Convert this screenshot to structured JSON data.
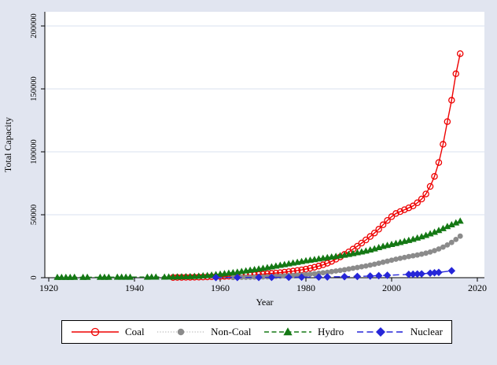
{
  "figure": {
    "background_color": "#e1e5f0",
    "plot_background_color": "#ffffff",
    "grid_color": "#d9e1ef",
    "axis_color": "#000000"
  },
  "chart_data": {
    "type": "line",
    "title": "",
    "xlabel": "Year",
    "ylabel": "Total Capacity",
    "xlim": [
      1919,
      2021.5
    ],
    "ylim": [
      0,
      211000
    ],
    "xticks": [
      1920,
      1940,
      1960,
      1980,
      2000,
      2020
    ],
    "yticks": [
      0,
      50000,
      100000,
      150000,
      200000
    ],
    "ytick_labels": [
      "0",
      "50000",
      "100000",
      "150000",
      "200000"
    ],
    "grid": "horizontal",
    "legend_position": "bottom",
    "series": [
      {
        "name": "Coal",
        "color": "#ee0000",
        "line_style": "solid",
        "dash": [],
        "marker": "open-circle",
        "points": [
          [
            1949,
            150
          ],
          [
            1950,
            200
          ],
          [
            1951,
            250
          ],
          [
            1952,
            300
          ],
          [
            1953,
            350
          ],
          [
            1954,
            400
          ],
          [
            1955,
            450
          ],
          [
            1956,
            550
          ],
          [
            1957,
            650
          ],
          [
            1958,
            750
          ],
          [
            1959,
            850
          ],
          [
            1960,
            950
          ],
          [
            1961,
            1050
          ],
          [
            1962,
            1150
          ],
          [
            1963,
            1300
          ],
          [
            1964,
            1450
          ],
          [
            1965,
            1600
          ],
          [
            1966,
            1800
          ],
          [
            1967,
            2000
          ],
          [
            1968,
            2250
          ],
          [
            1969,
            2500
          ],
          [
            1970,
            2800
          ],
          [
            1971,
            3100
          ],
          [
            1972,
            3400
          ],
          [
            1973,
            3700
          ],
          [
            1974,
            4000
          ],
          [
            1975,
            4400
          ],
          [
            1976,
            4800
          ],
          [
            1977,
            5200
          ],
          [
            1978,
            5700
          ],
          [
            1979,
            6200
          ],
          [
            1980,
            6800
          ],
          [
            1981,
            7500
          ],
          [
            1982,
            8300
          ],
          [
            1983,
            9200
          ],
          [
            1984,
            10200
          ],
          [
            1985,
            11500
          ],
          [
            1986,
            13000
          ],
          [
            1987,
            14700
          ],
          [
            1988,
            16500
          ],
          [
            1989,
            18500
          ],
          [
            1990,
            20500
          ],
          [
            1991,
            22700
          ],
          [
            1992,
            25000
          ],
          [
            1993,
            27500
          ],
          [
            1994,
            30000
          ],
          [
            1995,
            32700
          ],
          [
            1996,
            35500
          ],
          [
            1997,
            38500
          ],
          [
            1998,
            42000
          ],
          [
            1999,
            45500
          ],
          [
            2000,
            48500
          ],
          [
            2001,
            51000
          ],
          [
            2002,
            52500
          ],
          [
            2003,
            54000
          ],
          [
            2004,
            55500
          ],
          [
            2005,
            57000
          ],
          [
            2006,
            59500
          ],
          [
            2007,
            62500
          ],
          [
            2008,
            66500
          ],
          [
            2009,
            72500
          ],
          [
            2010,
            80500
          ],
          [
            2011,
            91500
          ],
          [
            2012,
            106000
          ],
          [
            2013,
            124000
          ],
          [
            2014,
            141000
          ],
          [
            2015,
            162000
          ],
          [
            2016,
            178000
          ]
        ]
      },
      {
        "name": "Non-Coal",
        "color": "#8b8b8b",
        "line_color": "#c4c4c4",
        "line_style": "dotted",
        "dash": [
          1.2,
          2.2
        ],
        "marker": "filled-circle",
        "points": [
          [
            1963,
            200
          ],
          [
            1964,
            250
          ],
          [
            1965,
            300
          ],
          [
            1966,
            350
          ],
          [
            1967,
            400
          ],
          [
            1968,
            450
          ],
          [
            1969,
            550
          ],
          [
            1970,
            650
          ],
          [
            1971,
            750
          ],
          [
            1972,
            900
          ],
          [
            1973,
            1050
          ],
          [
            1974,
            1200
          ],
          [
            1975,
            1400
          ],
          [
            1976,
            1600
          ],
          [
            1977,
            1800
          ],
          [
            1978,
            2000
          ],
          [
            1979,
            2200
          ],
          [
            1980,
            2500
          ],
          [
            1981,
            2800
          ],
          [
            1982,
            3100
          ],
          [
            1983,
            3500
          ],
          [
            1984,
            3900
          ],
          [
            1985,
            4300
          ],
          [
            1986,
            4800
          ],
          [
            1987,
            5300
          ],
          [
            1988,
            5800
          ],
          [
            1989,
            6300
          ],
          [
            1990,
            6900
          ],
          [
            1991,
            7500
          ],
          [
            1992,
            8100
          ],
          [
            1993,
            8700
          ],
          [
            1994,
            9300
          ],
          [
            1995,
            10000
          ],
          [
            1996,
            10700
          ],
          [
            1997,
            11500
          ],
          [
            1998,
            12300
          ],
          [
            1999,
            13100
          ],
          [
            2000,
            13900
          ],
          [
            2001,
            14700
          ],
          [
            2002,
            15400
          ],
          [
            2003,
            16100
          ],
          [
            2004,
            16800
          ],
          [
            2005,
            17400
          ],
          [
            2006,
            18000
          ],
          [
            2007,
            18700
          ],
          [
            2008,
            19500
          ],
          [
            2009,
            20400
          ],
          [
            2010,
            21500
          ],
          [
            2011,
            22800
          ],
          [
            2012,
            24300
          ],
          [
            2013,
            26000
          ],
          [
            2014,
            28000
          ],
          [
            2015,
            30400
          ],
          [
            2016,
            33000
          ]
        ]
      },
      {
        "name": "Hydro",
        "color": "#147814",
        "line_style": "dashed",
        "dash": [
          6,
          3.5
        ],
        "marker": "filled-triangle",
        "points": [
          [
            1922,
            300
          ],
          [
            1923,
            320
          ],
          [
            1924,
            340
          ],
          [
            1925,
            360
          ],
          [
            1926,
            380
          ],
          [
            1928,
            350
          ],
          [
            1929,
            370
          ],
          [
            1932,
            400
          ],
          [
            1933,
            420
          ],
          [
            1934,
            440
          ],
          [
            1936,
            450
          ],
          [
            1937,
            470
          ],
          [
            1938,
            490
          ],
          [
            1939,
            510
          ],
          [
            1943,
            520
          ],
          [
            1944,
            540
          ],
          [
            1945,
            560
          ],
          [
            1947,
            580
          ],
          [
            1948,
            620
          ],
          [
            1949,
            660
          ],
          [
            1950,
            700
          ],
          [
            1951,
            780
          ],
          [
            1952,
            870
          ],
          [
            1953,
            970
          ],
          [
            1954,
            1100
          ],
          [
            1955,
            1300
          ],
          [
            1956,
            1550
          ],
          [
            1957,
            1850
          ],
          [
            1958,
            2150
          ],
          [
            1959,
            2500
          ],
          [
            1960,
            2900
          ],
          [
            1961,
            3300
          ],
          [
            1962,
            3700
          ],
          [
            1963,
            4100
          ],
          [
            1964,
            4500
          ],
          [
            1965,
            5000
          ],
          [
            1966,
            5500
          ],
          [
            1967,
            6000
          ],
          [
            1968,
            6500
          ],
          [
            1969,
            7000
          ],
          [
            1970,
            7500
          ],
          [
            1971,
            8100
          ],
          [
            1972,
            8700
          ],
          [
            1973,
            9300
          ],
          [
            1974,
            9900
          ],
          [
            1975,
            10500
          ],
          [
            1976,
            11100
          ],
          [
            1977,
            11700
          ],
          [
            1978,
            12300
          ],
          [
            1979,
            12900
          ],
          [
            1980,
            13500
          ],
          [
            1981,
            14000
          ],
          [
            1982,
            14500
          ],
          [
            1983,
            15000
          ],
          [
            1984,
            15500
          ],
          [
            1985,
            16000
          ],
          [
            1986,
            16500
          ],
          [
            1987,
            17000
          ],
          [
            1988,
            17500
          ],
          [
            1989,
            18000
          ],
          [
            1990,
            18600
          ],
          [
            1991,
            19200
          ],
          [
            1992,
            19900
          ],
          [
            1993,
            20600
          ],
          [
            1994,
            21300
          ],
          [
            1995,
            22100
          ],
          [
            1996,
            23000
          ],
          [
            1997,
            24000
          ],
          [
            1998,
            24900
          ],
          [
            1999,
            25700
          ],
          [
            2000,
            26500
          ],
          [
            2001,
            27300
          ],
          [
            2002,
            28100
          ],
          [
            2003,
            28900
          ],
          [
            2004,
            29700
          ],
          [
            2005,
            30600
          ],
          [
            2006,
            31600
          ],
          [
            2007,
            32600
          ],
          [
            2008,
            33700
          ],
          [
            2009,
            34900
          ],
          [
            2010,
            36200
          ],
          [
            2011,
            37600
          ],
          [
            2012,
            39100
          ],
          [
            2013,
            40700
          ],
          [
            2014,
            42100
          ],
          [
            2015,
            43600
          ],
          [
            2016,
            45000
          ]
        ]
      },
      {
        "name": "Nuclear",
        "color": "#2626d8",
        "line_style": "dashed",
        "dash": [
          8,
          4.5
        ],
        "marker": "filled-diamond",
        "points": [
          [
            1959,
            120
          ],
          [
            1964,
            160
          ],
          [
            1969,
            210
          ],
          [
            1972,
            260
          ],
          [
            1976,
            320
          ],
          [
            1979,
            400
          ],
          [
            1983,
            500
          ],
          [
            1985,
            600
          ],
          [
            1989,
            800
          ],
          [
            1992,
            1000
          ],
          [
            1995,
            1300
          ],
          [
            1997,
            1600
          ],
          [
            1999,
            1900
          ],
          [
            2004,
            2600
          ],
          [
            2005,
            2750
          ],
          [
            2006,
            2900
          ],
          [
            2007,
            3050
          ],
          [
            2009,
            3600
          ],
          [
            2010,
            3900
          ],
          [
            2011,
            4200
          ],
          [
            2014,
            5500
          ]
        ]
      }
    ]
  }
}
